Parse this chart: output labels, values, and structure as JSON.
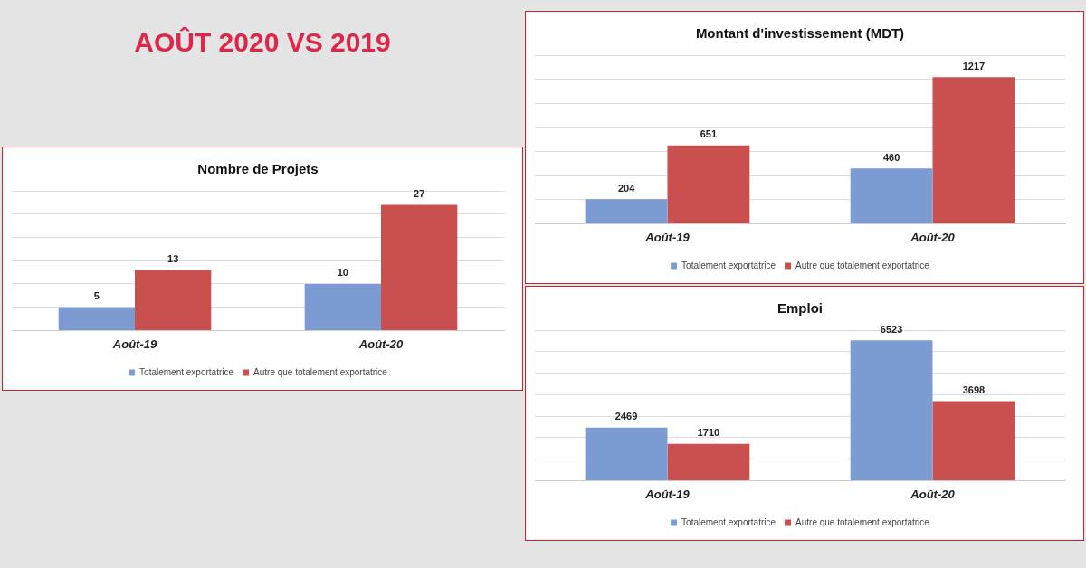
{
  "chart_data": [
    {
      "type": "other",
      "title": "AOÛT 2020 VS 2019"
    },
    {
      "type": "bar",
      "title": "Montant d'investissement (MDT)",
      "categories": [
        "Août-19",
        "Août-20"
      ],
      "series": [
        {
          "name": "Totalement exportatrice",
          "color": "#7b9bd2",
          "values": [
            204,
            460
          ]
        },
        {
          "name": "Autre que totalement exportatrice",
          "color": "#c9504f",
          "values": [
            651,
            1217
          ]
        }
      ],
      "ylim": [
        0,
        1400
      ],
      "yticks": [
        {
          "value": 0,
          "label": null
        },
        {
          "value": 200,
          "label": null
        },
        {
          "value": 400,
          "label": null
        },
        {
          "value": 600,
          "label": null
        },
        {
          "value": 800,
          "label": null
        },
        {
          "value": 1000,
          "label": null
        },
        {
          "value": 1200,
          "label": null
        },
        {
          "value": 1400,
          "label": null
        }
      ],
      "grid": "y",
      "tick_labels": "x",
      "legend": "bottom",
      "data_labels": true
    },
    {
      "type": "bar",
      "title": "Nombre de Projets",
      "categories": [
        "Août-19",
        "Août-20"
      ],
      "series": [
        {
          "name": "Totalement exportatrice",
          "color": "#7b9bd2",
          "values": [
            5,
            10
          ]
        },
        {
          "name": "Autre que totalement exportatrice",
          "color": "#c9504f",
          "values": [
            13,
            27
          ]
        }
      ],
      "ylim": [
        0,
        30
      ],
      "yticks": [
        {
          "value": 0,
          "label": null
        },
        {
          "value": 5,
          "label": null
        },
        {
          "value": 10,
          "label": null
        },
        {
          "value": 15,
          "label": null
        },
        {
          "value": 20,
          "label": null
        },
        {
          "value": 25,
          "label": null
        },
        {
          "value": 30,
          "label": null
        }
      ],
      "grid": "y",
      "tick_labels": "x",
      "legend": "bottom",
      "data_labels": true
    },
    {
      "type": "bar",
      "title": "Emploi",
      "categories": [
        "Août-19",
        "Août-20"
      ],
      "series": [
        {
          "name": "Totalement exportatrice",
          "color": "#7b9bd2",
          "values": [
            2469,
            6523
          ]
        },
        {
          "name": "Autre que totalement exportatrice",
          "color": "#c9504f",
          "values": [
            1710,
            3698
          ]
        }
      ],
      "ylim": [
        0,
        7000
      ],
      "yticks": [
        {
          "value": 0,
          "label": null
        },
        {
          "value": 1000,
          "label": null
        },
        {
          "value": 2000,
          "label": null
        },
        {
          "value": 3000,
          "label": null
        },
        {
          "value": 4000,
          "label": null
        },
        {
          "value": 5000,
          "label": null
        },
        {
          "value": 6000,
          "label": null
        },
        {
          "value": 7000,
          "label": null
        }
      ],
      "grid": "y",
      "tick_labels": "x",
      "legend": "bottom",
      "data_labels": true
    }
  ]
}
